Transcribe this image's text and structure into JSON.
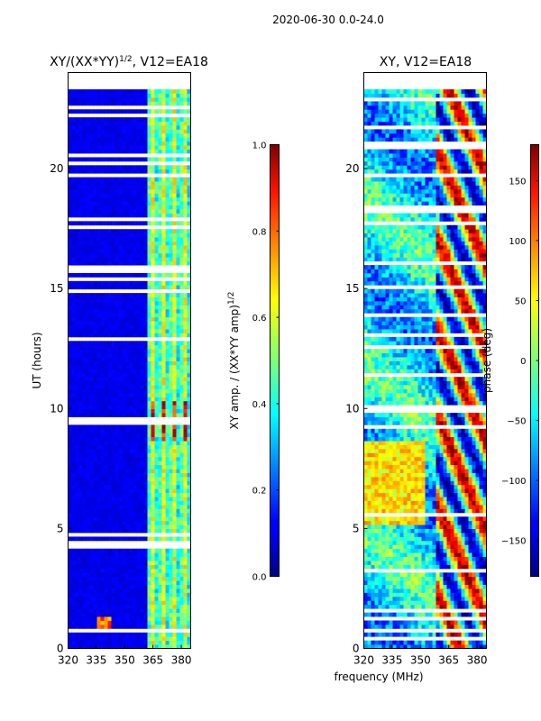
{
  "figure": {
    "suptitle": "2020-06-30 0.0-24.0",
    "shared_xlabel": "frequency (MHz)"
  },
  "chart_data": [
    {
      "type": "heatmap",
      "title": "XY/(XX*YY)",
      "title_exponent": "1/2",
      "title_suffix": ", V12=EA18",
      "xlabel": "",
      "ylabel": "UT (hours)",
      "xlim": [
        320,
        385
      ],
      "ylim": [
        0,
        24
      ],
      "x_ticks": [
        320,
        335,
        350,
        365,
        380
      ],
      "y_ticks": [
        0,
        5,
        10,
        15,
        20
      ],
      "grid": false,
      "colormap": "jet",
      "data_extent_hours": [
        0,
        23.3
      ],
      "colorbar": {
        "label": "XY amp. / (XX*YY amp)",
        "label_exponent": "1/2",
        "range": [
          0.0,
          1.0
        ],
        "ticks": [
          "0.0",
          "0.2",
          "0.4",
          "0.6",
          "0.8",
          "1.0"
        ]
      }
    },
    {
      "type": "heatmap",
      "title": "XY, V12=EA18",
      "xlabel": "frequency (MHz)",
      "ylabel": "",
      "xlim": [
        320,
        385
      ],
      "ylim": [
        0,
        24
      ],
      "x_ticks": [
        320,
        335,
        350,
        365,
        380
      ],
      "y_ticks": [
        0,
        5,
        10,
        15,
        20
      ],
      "grid": false,
      "colormap": "jet",
      "data_extent_hours": [
        0,
        23.3
      ],
      "colorbar": {
        "label": "phase (deg)",
        "range": [
          -180,
          180
        ],
        "ticks": [
          "−150",
          "−100",
          "−50",
          "0",
          "50",
          "100",
          "150"
        ]
      }
    }
  ]
}
